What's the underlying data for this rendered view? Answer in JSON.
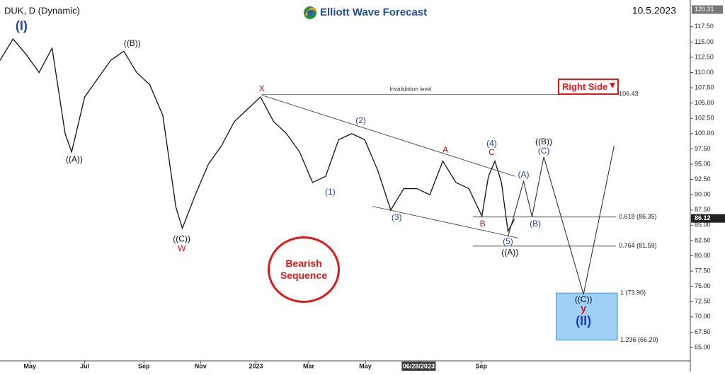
{
  "header": {
    "symbol": "DUK, D (Dynamic)",
    "brand": "Elliott Wave Forecast",
    "date": "10.5.2023"
  },
  "chart_data": {
    "type": "line",
    "color": "#111111",
    "x": [
      0,
      2,
      4,
      6,
      8,
      10,
      11,
      13,
      15,
      17,
      19,
      21,
      23,
      25,
      27,
      28,
      30,
      32,
      34,
      36,
      38,
      40,
      42,
      44,
      46,
      48,
      50,
      52,
      54,
      56,
      58,
      60,
      62,
      64,
      66,
      68,
      70,
      72,
      74,
      75,
      76,
      77,
      78,
      79
    ],
    "values": [
      112,
      115.5,
      113,
      110,
      114,
      100,
      97,
      106,
      109,
      112,
      113.5,
      110,
      108,
      103,
      88,
      84.5,
      90,
      95,
      98,
      102,
      104,
      106,
      102,
      100,
      97,
      92,
      93,
      99,
      100,
      99,
      94,
      87.5,
      91,
      91,
      90,
      95.5,
      92,
      91,
      86.5,
      93,
      95.5,
      92,
      84,
      86
    ],
    "xlim": [
      0,
      106
    ],
    "ylim": [
      62.8,
      121.3
    ],
    "xticks": [
      {
        "value": 4.6,
        "label": "May"
      },
      {
        "value": 13,
        "label": "Jul"
      },
      {
        "value": 22.1,
        "label": "Sep"
      },
      {
        "value": 30.8,
        "label": "Nov"
      },
      {
        "value": 39.3,
        "label": "2023"
      },
      {
        "value": 47.4,
        "label": "Mar"
      },
      {
        "value": 56.1,
        "label": "May"
      },
      {
        "value": 64.3,
        "label": "06/28/2023"
      },
      {
        "value": 73.9,
        "label": "Sep"
      }
    ],
    "yticks": [
      {
        "value": 65,
        "label": "65.00"
      },
      {
        "value": 67.5,
        "label": "67.50"
      },
      {
        "value": 70,
        "label": "70.00"
      },
      {
        "value": 72.5,
        "label": "72.50"
      },
      {
        "value": 75,
        "label": "75.00"
      },
      {
        "value": 77.5,
        "label": "77.50"
      },
      {
        "value": 80,
        "label": "80.00"
      },
      {
        "value": 82.5,
        "label": "82.50"
      },
      {
        "value": 85,
        "label": "85.00"
      },
      {
        "value": 87.5,
        "label": "87.50"
      },
      {
        "value": 90,
        "label": "90.00"
      },
      {
        "value": 92.5,
        "label": "92.50"
      },
      {
        "value": 95,
        "label": "95.00"
      },
      {
        "value": 97.5,
        "label": "97.50"
      },
      {
        "value": 100,
        "label": "100.00"
      },
      {
        "value": 102.5,
        "label": "102.50"
      },
      {
        "value": 105,
        "label": "105.00"
      },
      {
        "value": 107.5,
        "label": "107.50"
      },
      {
        "value": 110,
        "label": "110.00"
      },
      {
        "value": 112.5,
        "label": "112.50"
      },
      {
        "value": 115,
        "label": "115.00"
      },
      {
        "value": 117.5,
        "label": "117.50"
      }
    ],
    "top_label": 120.31,
    "last_price": 86.12,
    "projection": {
      "x": [
        78,
        80.4,
        81.7,
        83.5,
        89.6,
        94.3
      ],
      "values": [
        83.1,
        92.2,
        86.4,
        96.2,
        73.7,
        98
      ]
    },
    "channels": [
      {
        "x": [
          40.2,
          79.1
        ],
        "values": [
          106.3,
          93
        ]
      },
      {
        "x": [
          57.2,
          79.6
        ],
        "values": [
          88.1,
          82.9
        ]
      }
    ],
    "levels": [
      {
        "value": 106.43,
        "note": "Invalidation level",
        "x": [
          40.2,
          94.6
        ],
        "color": "#e02020"
      },
      {
        "value": 86.35,
        "label": "0.618 (86.35)",
        "x": [
          72.6,
          94.6
        ],
        "color": "#333333"
      },
      {
        "value": 81.59,
        "label": "0.764 (81.59)",
        "x": [
          72.6,
          94.6
        ],
        "color": "#333333"
      },
      {
        "value": 73.9,
        "label": "1 (73.90)"
      },
      {
        "value": 66.2,
        "label": "1.236 (66.20)"
      }
    ],
    "target_box": {
      "from": 73.9,
      "to": 66.2,
      "x": [
        85.4,
        94.8
      ],
      "color": "#9fd0f5"
    },
    "annotations": [
      {
        "text": "(I)",
        "x": 3.3,
        "y": 117.5,
        "color": "#1f3fbf",
        "size": 18
      },
      {
        "text": "((A))",
        "x": 11.4,
        "y": 95.7,
        "color": "#111111",
        "size": 12
      },
      {
        "text": "((B))",
        "x": 20.3,
        "y": 114.7,
        "color": "#111111",
        "size": 12
      },
      {
        "text": "((C))",
        "x": 27.9,
        "y": 82.7,
        "color": "#111111",
        "size": 12
      },
      {
        "text": "W",
        "x": 27.9,
        "y": 81.1,
        "color": "#d01010",
        "size": 12
      },
      {
        "text": "X",
        "x": 40.2,
        "y": 107.3,
        "color": "#d01010",
        "size": 12
      },
      {
        "text": "(2)",
        "x": 55.4,
        "y": 102.1,
        "color": "#1f3fbf",
        "size": 12
      },
      {
        "text": "(1)",
        "x": 50.7,
        "y": 90.4,
        "color": "#1f3fbf",
        "size": 12
      },
      {
        "text": "(3)",
        "x": 60.9,
        "y": 86.2,
        "color": "#1f3fbf",
        "size": 12
      },
      {
        "text": "A",
        "x": 68.4,
        "y": 97.3,
        "color": "#d01010",
        "size": 12
      },
      {
        "text": "(4)",
        "x": 75.5,
        "y": 98.3,
        "color": "#1f3fbf",
        "size": 12
      },
      {
        "text": "C",
        "x": 75.5,
        "y": 96.9,
        "color": "#d01010",
        "size": 12
      },
      {
        "text": "B",
        "x": 74.1,
        "y": 85.2,
        "color": "#d01010",
        "size": 12
      },
      {
        "text": "(5)",
        "x": 78,
        "y": 82.3,
        "color": "#1f3fbf",
        "size": 12
      },
      {
        "text": "((A))",
        "x": 78.3,
        "y": 80.5,
        "color": "#111111",
        "size": 12
      },
      {
        "text": "(A)",
        "x": 80.4,
        "y": 93.2,
        "color": "#1f3fbf",
        "size": 12
      },
      {
        "text": "(B)",
        "x": 82.2,
        "y": 85.2,
        "color": "#1f3fbf",
        "size": 12
      },
      {
        "text": "((B))",
        "x": 83.5,
        "y": 98.6,
        "color": "#111111",
        "size": 12
      },
      {
        "text": "(C)",
        "x": 83.5,
        "y": 97.1,
        "color": "#1f3fbf",
        "size": 12
      },
      {
        "text": "((C))",
        "x": 89.6,
        "y": 72.8,
        "color": "#111111",
        "size": 12
      },
      {
        "text": "y",
        "x": 89.6,
        "y": 71.3,
        "color": "#d01010",
        "size": 14
      },
      {
        "text": "(II)",
        "x": 89.6,
        "y": 69.2,
        "color": "#1f3fbf",
        "size": 18
      }
    ],
    "badges": {
      "right_side": "Right Side",
      "sequence": "Bearish Sequence"
    }
  }
}
